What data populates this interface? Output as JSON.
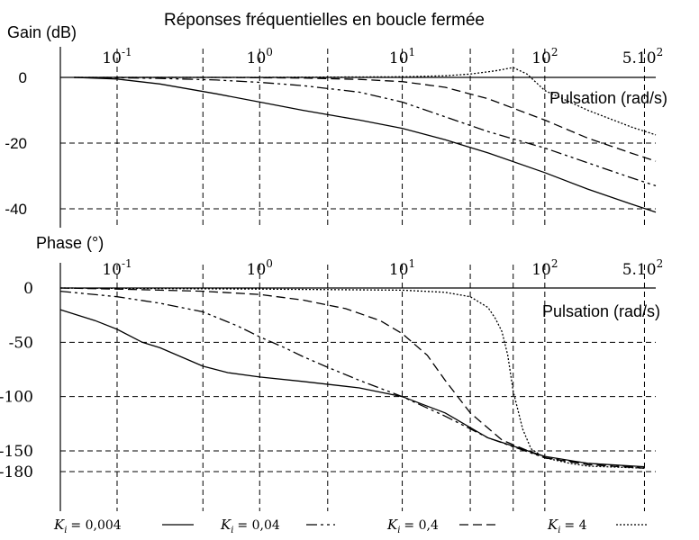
{
  "chart_data": [
    {
      "type": "line",
      "title": "Réponses fréquentielles en boucle fermée",
      "ylabel": "Gain (dB)",
      "xlabel": "Pulsation (rad/s)",
      "x_scale": "log",
      "xlim": [
        0.04,
        600
      ],
      "ylim": [
        -42,
        4
      ],
      "x_ticks": [
        {
          "value": 0.1,
          "base": "10",
          "exp": "-1"
        },
        {
          "value": 1,
          "base": "10",
          "exp": "0"
        },
        {
          "value": 10,
          "base": "10",
          "exp": "1"
        },
        {
          "value": 100,
          "base": "10",
          "exp": "2"
        },
        {
          "value": 500,
          "base": "5.10",
          "exp": "2"
        }
      ],
      "y_ticks": [
        {
          "value": 0,
          "label": "0"
        },
        {
          "value": -20,
          "label": "-20"
        },
        {
          "value": -40,
          "label": "-40"
        }
      ],
      "grid_x": [
        0.1,
        0.4,
        1,
        3,
        10,
        30,
        60,
        100,
        500
      ],
      "grid_y": [
        -20,
        -40
      ],
      "series": [
        {
          "key": "ki_0004",
          "x": [
            0.05,
            0.1,
            0.2,
            0.5,
            1,
            2,
            5,
            10,
            20,
            40,
            100,
            200,
            400,
            600
          ],
          "y": [
            0,
            -0.5,
            -2,
            -5,
            -7.5,
            -10,
            -13,
            -15.5,
            -19,
            -23,
            -29,
            -34,
            -38.5,
            -41
          ]
        },
        {
          "key": "ki_004",
          "x": [
            0.05,
            0.1,
            0.2,
            0.5,
            1,
            2,
            5,
            10,
            20,
            40,
            100,
            200,
            400,
            600
          ],
          "y": [
            0,
            -0.1,
            -0.3,
            -0.8,
            -1.5,
            -2.5,
            -4.5,
            -7.5,
            -12,
            -16.5,
            -21.5,
            -26,
            -30.5,
            -33
          ]
        },
        {
          "key": "ki_04",
          "x": [
            0.05,
            0.1,
            0.5,
            1,
            2,
            5,
            10,
            20,
            40,
            100,
            200,
            400,
            600
          ],
          "y": [
            0,
            0,
            0,
            -0.1,
            -0.2,
            -0.6,
            -1.3,
            -3,
            -6.5,
            -13,
            -18.5,
            -23,
            -25.5
          ]
        },
        {
          "key": "ki_4",
          "x": [
            0.05,
            1,
            10,
            20,
            30,
            45,
            60,
            75,
            100,
            200,
            400,
            600
          ],
          "y": [
            0,
            0,
            0.2,
            0.5,
            1,
            2,
            3,
            1,
            -4,
            -10,
            -15,
            -17.5
          ]
        }
      ]
    },
    {
      "type": "line",
      "ylabel": "Phase (°)",
      "xlabel": "Pulsation (rad/s)",
      "x_scale": "log",
      "xlim": [
        0.04,
        600
      ],
      "ylim": [
        -190,
        5
      ],
      "x_ticks": [
        {
          "value": 0.1,
          "base": "10",
          "exp": "-1"
        },
        {
          "value": 1,
          "base": "10",
          "exp": "0"
        },
        {
          "value": 10,
          "base": "10",
          "exp": "1"
        },
        {
          "value": 100,
          "base": "10",
          "exp": "2"
        },
        {
          "value": 500,
          "base": "5.10",
          "exp": "2"
        }
      ],
      "y_ticks": [
        {
          "value": 0,
          "label": "0"
        },
        {
          "value": -50,
          "label": "-50"
        },
        {
          "value": -100,
          "label": "-100"
        },
        {
          "value": -150,
          "label": "-150"
        },
        {
          "value": -180,
          "label": "-180"
        }
      ],
      "grid_x": [
        0.1,
        0.4,
        1,
        3,
        10,
        30,
        60,
        100,
        500
      ],
      "grid_y": [
        -50,
        -100,
        -150,
        -180
      ],
      "series": [
        {
          "key": "ki_0004",
          "x": [
            0.04,
            0.07,
            0.1,
            0.15,
            0.2,
            0.3,
            0.4,
            0.6,
            1,
            2,
            5,
            10,
            20,
            40,
            100,
            200,
            500
          ],
          "y": [
            -20,
            -30,
            -38,
            -50,
            -55,
            -65,
            -72,
            -78,
            -82,
            -86,
            -92,
            -100,
            -115,
            -138,
            -158,
            -168,
            -173
          ]
        },
        {
          "key": "ki_004",
          "x": [
            0.04,
            0.1,
            0.2,
            0.4,
            0.7,
            1,
            1.5,
            2,
            3,
            5,
            10,
            20,
            40,
            100,
            200,
            500
          ],
          "y": [
            -3,
            -8,
            -14,
            -22,
            -35,
            -45,
            -55,
            -63,
            -73,
            -85,
            -100,
            -118,
            -138,
            -160,
            -168,
            -174
          ]
        },
        {
          "key": "ki_04",
          "x": [
            0.04,
            0.1,
            0.4,
            1,
            2,
            4,
            7,
            10,
            15,
            20,
            30,
            50,
            100,
            200,
            500
          ],
          "y": [
            0,
            -1,
            -3,
            -6,
            -11,
            -19,
            -30,
            -42,
            -62,
            -85,
            -115,
            -140,
            -160,
            -170,
            -175
          ]
        },
        {
          "key": "ki_4",
          "x": [
            0.04,
            1,
            10,
            20,
            30,
            40,
            45,
            50,
            55,
            60,
            70,
            80,
            100,
            150,
            200,
            500
          ],
          "y": [
            0,
            -1,
            -2,
            -4,
            -8,
            -18,
            -28,
            -40,
            -62,
            -95,
            -130,
            -148,
            -160,
            -168,
            -172,
            -175
          ]
        }
      ]
    }
  ],
  "legend": [
    {
      "key": "ki_0004",
      "sym": "K",
      "sub": "i",
      "value": "= 0,004"
    },
    {
      "key": "ki_004",
      "sym": "K",
      "sub": "i",
      "value": "= 0,04"
    },
    {
      "key": "ki_04",
      "sym": "K",
      "sub": "i",
      "value": "= 0,4"
    },
    {
      "key": "ki_4",
      "sym": "K",
      "sub": "i",
      "value": "= 4"
    }
  ],
  "styles": {
    "ki_0004": {
      "color": "#000000",
      "dash": ""
    },
    "ki_004": {
      "color": "#000000",
      "dash": "12 4 3 4 3 4"
    },
    "ki_04": {
      "color": "#000000",
      "dash": "10 5"
    },
    "ki_4": {
      "color": "#000000",
      "dash": "2 2"
    }
  }
}
